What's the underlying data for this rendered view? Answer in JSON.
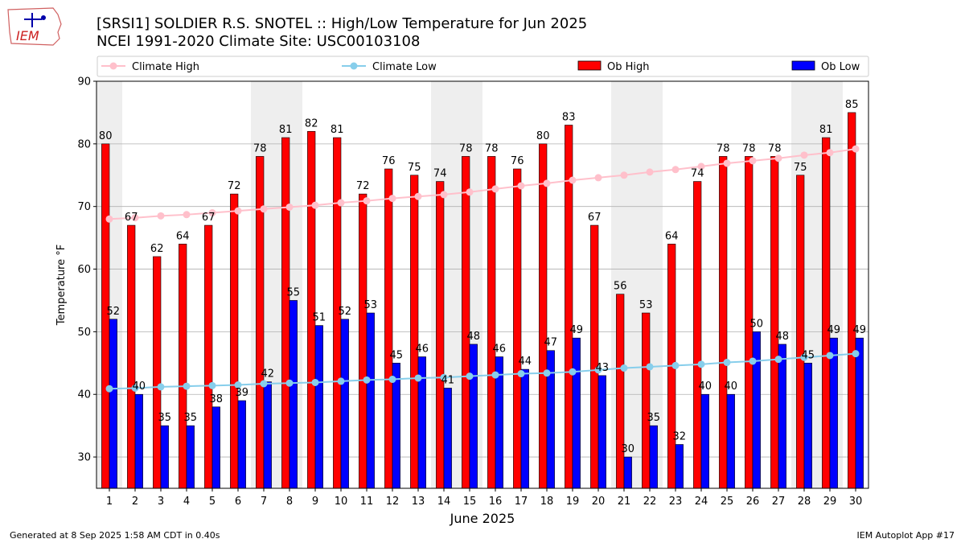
{
  "header": {
    "logo_text": "IEM",
    "title_line1": "[SRSI1] SOLDIER R.S. SNOTEL :: High/Low Temperature for Jun 2025",
    "title_line2": "NCEI 1991-2020 Climate Site: USC00103108"
  },
  "footer": {
    "generated": "Generated at 8 Sep 2025 1:58 AM CDT in 0.40s",
    "app": "IEM Autoplot App #17"
  },
  "colors": {
    "ob_high": "#ff0000",
    "ob_low": "#0000ff",
    "climate_high": "#ffc0cb",
    "climate_low": "#87ceeb",
    "weekend_shade": "#eeeeee"
  },
  "chart_data": {
    "type": "bar",
    "xlabel": "June 2025",
    "ylabel": "Temperature °F",
    "ylim": [
      25,
      90
    ],
    "yticks": [
      30,
      40,
      50,
      60,
      70,
      80,
      90
    ],
    "grid": "horizontal",
    "legend_position": "top",
    "categories": [
      "1",
      "2",
      "3",
      "4",
      "5",
      "6",
      "7",
      "8",
      "9",
      "10",
      "11",
      "12",
      "13",
      "14",
      "15",
      "16",
      "17",
      "18",
      "19",
      "20",
      "21",
      "22",
      "23",
      "24",
      "25",
      "26",
      "27",
      "28",
      "29",
      "30"
    ],
    "weekend_days": [
      1,
      7,
      8,
      14,
      15,
      21,
      22,
      28,
      29
    ],
    "series": [
      {
        "name": "Climate High",
        "kind": "line",
        "values": [
          68.0,
          68.2,
          68.5,
          68.7,
          69.0,
          69.3,
          69.6,
          69.9,
          70.2,
          70.6,
          70.9,
          71.3,
          71.6,
          71.9,
          72.3,
          72.8,
          73.3,
          73.7,
          74.2,
          74.6,
          75.0,
          75.5,
          75.9,
          76.4,
          76.9,
          77.3,
          77.7,
          78.2,
          78.6,
          79.2
        ]
      },
      {
        "name": "Climate Low",
        "kind": "line",
        "values": [
          40.9,
          41.0,
          41.2,
          41.3,
          41.4,
          41.5,
          41.7,
          41.8,
          41.9,
          42.1,
          42.3,
          42.4,
          42.6,
          42.7,
          42.9,
          43.1,
          43.3,
          43.4,
          43.6,
          43.9,
          44.2,
          44.4,
          44.6,
          44.8,
          45.1,
          45.3,
          45.6,
          45.9,
          46.2,
          46.5
        ]
      },
      {
        "name": "Ob High",
        "kind": "bar",
        "values": [
          80,
          67,
          62,
          64,
          67,
          72,
          78,
          81,
          82,
          81,
          72,
          76,
          75,
          74,
          78,
          78,
          76,
          80,
          83,
          67,
          56,
          53,
          64,
          74,
          78,
          78,
          78,
          75,
          81,
          85
        ]
      },
      {
        "name": "Ob Low",
        "kind": "bar",
        "values": [
          52,
          40,
          35,
          35,
          38,
          39,
          42,
          55,
          51,
          52,
          53,
          45,
          46,
          41,
          48,
          46,
          44,
          47,
          49,
          43,
          30,
          35,
          32,
          40,
          40,
          50,
          48,
          45,
          49,
          49
        ]
      }
    ]
  }
}
